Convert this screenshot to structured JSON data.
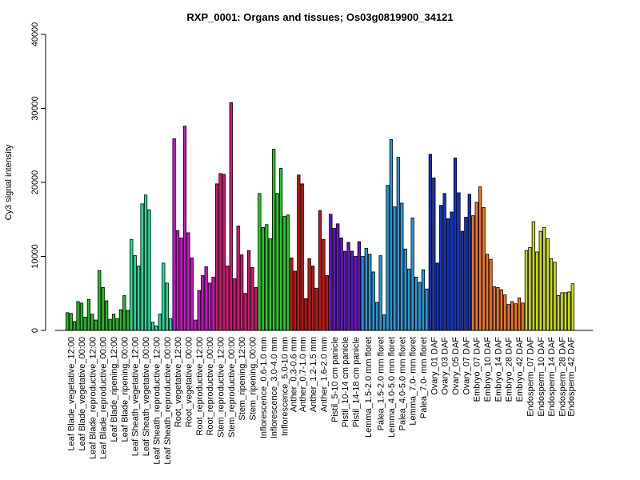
{
  "chart_data": {
    "type": "bar",
    "title": "RXP_0001: Organs and tissues; Os03g0819900_34121",
    "ylabel": "Cy3 signal intensity",
    "xlabel": "",
    "ylim": [
      0,
      40000
    ],
    "yticks": [
      0,
      10000,
      20000,
      30000,
      40000
    ],
    "grid": false,
    "legend": "none",
    "groups": [
      {
        "label": "Leaf Blade_vegetative_12:00",
        "color": "#22bb22",
        "values": [
          2400,
          2300,
          1200
        ]
      },
      {
        "label": "Leaf Blade_vegetative_00:00",
        "color": "#22bb22",
        "values": [
          3900,
          3700,
          1800
        ]
      },
      {
        "label": "Leaf Blade_reproductive_12:00",
        "color": "#22bb22",
        "values": [
          4200,
          2200,
          1400
        ]
      },
      {
        "label": "Leaf Blade_reproductive_00:00",
        "color": "#22bb22",
        "values": [
          8100,
          5800,
          4000
        ]
      },
      {
        "label": "Leaf Blade_ripening_12:00",
        "color": "#22bb22",
        "values": [
          1500,
          2200,
          1600
        ]
      },
      {
        "label": "Leaf Blade_ripening_00:00",
        "color": "#22bb22",
        "values": [
          2800,
          4700,
          2700
        ]
      },
      {
        "label": "Leaf Sheath_vegetative_12:00",
        "color": "#22dd99",
        "values": [
          12300,
          10100,
          8700
        ]
      },
      {
        "label": "Leaf Sheath_vegetative_00:00",
        "color": "#22dd99",
        "values": [
          17100,
          18300,
          16300
        ]
      },
      {
        "label": "Leaf Sheath_reproductive_12:00",
        "color": "#22dd99",
        "values": [
          1100,
          600,
          2200
        ]
      },
      {
        "label": "Leaf Sheath_reproductive_00:00",
        "color": "#22dd99",
        "values": [
          9100,
          6400,
          1600
        ]
      },
      {
        "label": "Root_vegetative_12:00",
        "color": "#cc11cc",
        "values": [
          25900,
          13500,
          12500
        ]
      },
      {
        "label": "Root_vegetative_00:00",
        "color": "#cc11cc",
        "values": [
          27600,
          13200,
          9800
        ]
      },
      {
        "label": "Root_reproductive_12:00",
        "color": "#cc11cc",
        "values": [
          1400,
          5400,
          7400
        ]
      },
      {
        "label": "Root_reproductive_00:00",
        "color": "#cc11cc",
        "values": [
          8600,
          6400,
          7200
        ]
      },
      {
        "label": "Stem_reproductive_12:00",
        "color": "#dd1177",
        "values": [
          19800,
          21200,
          21100
        ]
      },
      {
        "label": "Stem_reproductive_00:00",
        "color": "#dd1177",
        "values": [
          8700,
          30800,
          7000
        ]
      },
      {
        "label": "Stem_ripening_12:00",
        "color": "#dd1177",
        "values": [
          14100,
          10200,
          5000
        ]
      },
      {
        "label": "Stem_ripening_00:00",
        "color": "#dd1177",
        "values": [
          10800,
          8500,
          5800
        ]
      },
      {
        "label": "Inflorescence_0.6-1.0 mm",
        "color": "#22cc22",
        "values": [
          18500,
          13900,
          14300
        ]
      },
      {
        "label": "Inflorescence_3.0-4.0 mm",
        "color": "#22cc22",
        "values": [
          12400,
          24500,
          18500
        ]
      },
      {
        "label": "Inflorescence_5.0-10 mm",
        "color": "#22cc22",
        "values": [
          21900,
          15400,
          15600
        ]
      },
      {
        "label": "Anther_0.3-0.6 mm",
        "color": "#cc1111",
        "values": [
          9800,
          8000
        ]
      },
      {
        "label": "Anther_0.7-1.0 mm",
        "color": "#cc1111",
        "values": [
          21000,
          19800,
          4300
        ]
      },
      {
        "label": "Anther_1.2-1.5 mm",
        "color": "#cc1111",
        "values": [
          9700,
          8700,
          5700
        ]
      },
      {
        "label": "Anther_1.6-2.0 mm",
        "color": "#cc1111",
        "values": [
          16200,
          12300,
          7400
        ]
      },
      {
        "label": "Pistil_5-10 cm panicle",
        "color": "#6611cc",
        "values": [
          15700,
          13800,
          14400
        ]
      },
      {
        "label": "Pistil_10-14 cm panicle",
        "color": "#6611cc",
        "values": [
          12500,
          10700,
          11900
        ]
      },
      {
        "label": "Pistil_14-18 cm panicle",
        "color": "#6611cc",
        "values": [
          10700,
          10000,
          12000
        ]
      },
      {
        "label": "Lemma_1.5-2.0 mm floret",
        "color": "#2299dd",
        "values": [
          10000,
          11100,
          10300,
          7900
        ]
      },
      {
        "label": "Palea_1.5-2.0 mm floret",
        "color": "#2299dd",
        "values": [
          3800,
          10100,
          2100
        ]
      },
      {
        "label": "Lemma_4.0-5.0 mm floret",
        "color": "#2299dd",
        "values": [
          19600,
          25800,
          16700
        ]
      },
      {
        "label": "Palea_4.0-5.0 mm floret",
        "color": "#2299dd",
        "values": [
          23400,
          17200,
          11000
        ]
      },
      {
        "label": "Lemma_7.0- mm floret",
        "color": "#2299dd",
        "values": [
          8300,
          15200,
          7200
        ]
      },
      {
        "label": "Palea_7.0- mm floret",
        "color": "#2299dd",
        "values": [
          6500,
          8200,
          5600
        ]
      },
      {
        "label": "Ovary_01 DAF",
        "color": "#1133cc",
        "values": [
          23800,
          20600,
          9100
        ]
      },
      {
        "label": "Ovary_03 DAF",
        "color": "#1133cc",
        "values": [
          16900,
          18500,
          15100
        ]
      },
      {
        "label": "Ovary_05 DAF",
        "color": "#1133cc",
        "values": [
          16000,
          23300,
          18600
        ]
      },
      {
        "label": "Ovary_07 DAF",
        "color": "#1133cc",
        "values": [
          13400,
          15300,
          18400
        ]
      },
      {
        "label": "Embryo_07 DAF",
        "color": "#ee7722",
        "values": [
          15500,
          17300,
          19400
        ]
      },
      {
        "label": "Embryo_10 DAF",
        "color": "#ee7722",
        "values": [
          16600,
          10300,
          9600
        ]
      },
      {
        "label": "Embryo_14 DAF",
        "color": "#ee7722",
        "values": [
          5900,
          5800,
          5500
        ]
      },
      {
        "label": "Embryo_28 DAF",
        "color": "#ee7722",
        "values": [
          4800,
          3500,
          3900
        ]
      },
      {
        "label": "Embryo_42 DAF",
        "color": "#ee7722",
        "values": [
          3600,
          4400,
          3700
        ]
      },
      {
        "label": "Endosperm_07 DAF",
        "color": "#ccdd11",
        "values": [
          10800,
          11200,
          14700
        ]
      },
      {
        "label": "Endosperm_10 DAF",
        "color": "#ccdd11",
        "values": [
          10600,
          13400,
          13900
        ]
      },
      {
        "label": "Endosperm_14 DAF",
        "color": "#ccdd11",
        "values": [
          12400,
          9700,
          9200
        ]
      },
      {
        "label": "Endosperm_28 DAF",
        "color": "#ccdd11",
        "values": [
          4700,
          5100,
          5100
        ]
      },
      {
        "label": "Endosperm_42 DAF",
        "color": "#ccdd11",
        "values": [
          5200,
          6300
        ]
      }
    ]
  }
}
